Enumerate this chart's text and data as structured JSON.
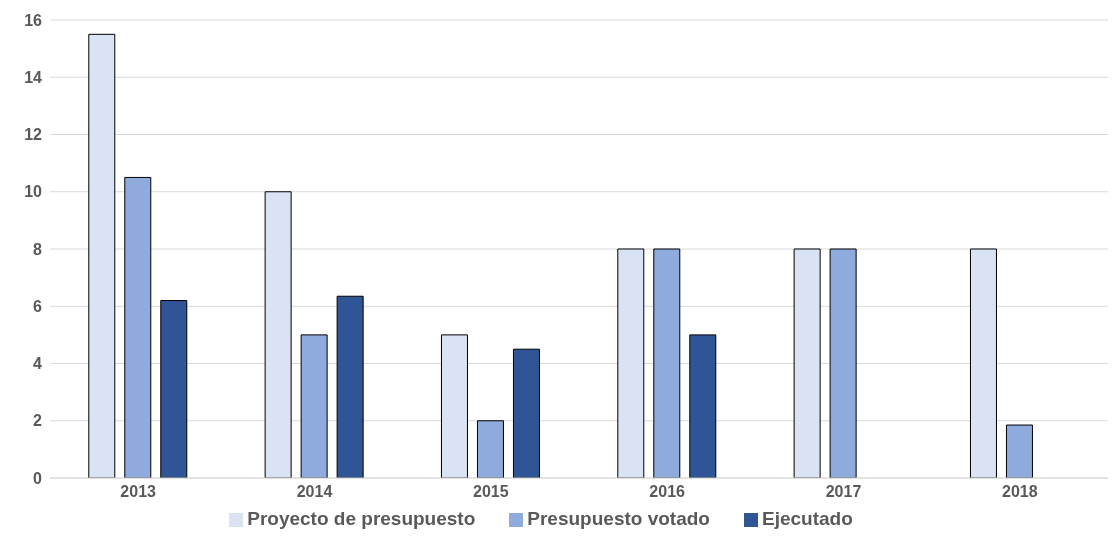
{
  "chart_data": {
    "type": "bar",
    "categories": [
      "2013",
      "2014",
      "2015",
      "2016",
      "2017",
      "2018"
    ],
    "series": [
      {
        "name": "Proyecto de presupuesto",
        "color": "#dae3f3",
        "values": [
          15.5,
          10.0,
          5.0,
          8.0,
          8.0,
          8.0
        ]
      },
      {
        "name": "Presupuesto votado",
        "color": "#8faadc",
        "values": [
          10.5,
          5.0,
          2.0,
          8.0,
          8.0,
          1.85
        ]
      },
      {
        "name": "Ejecutado",
        "color": "#2f5597",
        "values": [
          6.2,
          6.35,
          4.5,
          5.0,
          null,
          null
        ]
      }
    ],
    "ylim": [
      0,
      16
    ],
    "yticks": [
      0,
      2,
      4,
      6,
      8,
      10,
      12,
      14,
      16
    ],
    "grid": "y",
    "legend": "bottom"
  }
}
